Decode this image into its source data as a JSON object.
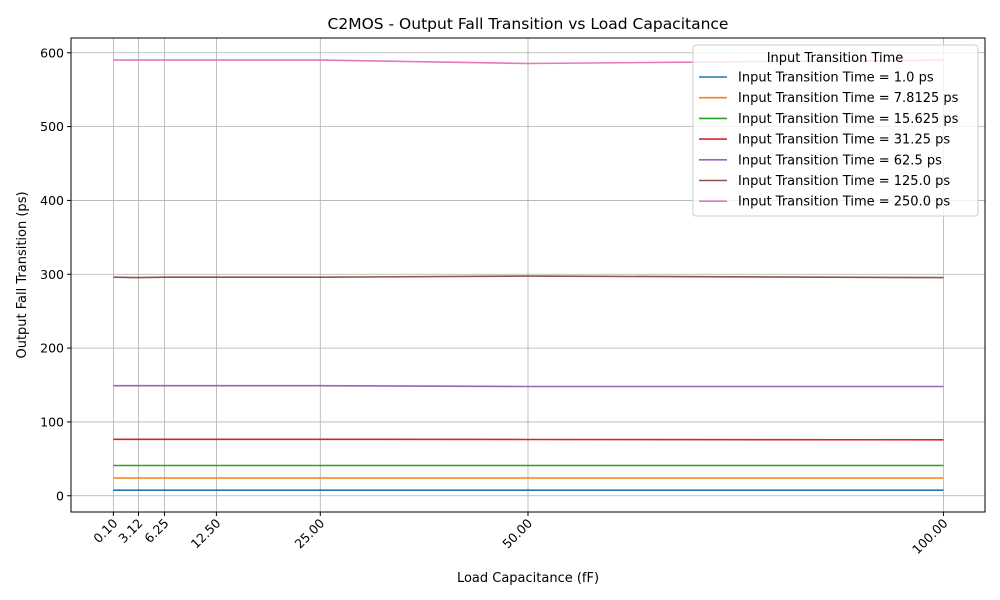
{
  "chart_data": {
    "type": "line",
    "title": "C2MOS - Output Fall Transition vs Load Capacitance",
    "xlabel": "Load Capacitance (fF)",
    "ylabel": "Output Fall Transition (ps)",
    "x": [
      0.1,
      3.12,
      6.25,
      12.5,
      25.0,
      50.0,
      100.0
    ],
    "x_tick_labels": [
      "0.10",
      "3.12",
      "6.25",
      "12.50",
      "25.00",
      "50.00",
      "100.00"
    ],
    "y_ticks": [
      0,
      100,
      200,
      300,
      400,
      500,
      600
    ],
    "xlim": [
      -5.0,
      105.0
    ],
    "ylim": [
      -22,
      620
    ],
    "grid": true,
    "legend_title": "Input Transition Time",
    "legend_position": "upper-right",
    "series": [
      {
        "name": "Input Transition Time = 1.0 ps",
        "color": "#1f77b4",
        "values": [
          7.5,
          7.5,
          7.5,
          7.5,
          7.5,
          7.5,
          7.5
        ]
      },
      {
        "name": "Input Transition Time = 7.8125 ps",
        "color": "#ff7f0e",
        "values": [
          24,
          24,
          24,
          24,
          24,
          24,
          24
        ]
      },
      {
        "name": "Input Transition Time = 15.625 ps",
        "color": "#2ca02c",
        "values": [
          41,
          41,
          41,
          41,
          41,
          41,
          41
        ]
      },
      {
        "name": "Input Transition Time = 31.25 ps",
        "color": "#d62728",
        "values": [
          76.5,
          76.5,
          76.5,
          76.5,
          76.5,
          76.2,
          75.8
        ]
      },
      {
        "name": "Input Transition Time = 62.5 ps",
        "color": "#9467bd",
        "values": [
          149,
          149,
          149,
          149,
          149,
          148,
          148
        ]
      },
      {
        "name": "Input Transition Time = 125.0 ps",
        "color": "#8c564b",
        "values": [
          296,
          295.5,
          296,
          296,
          296,
          297.5,
          295.5
        ]
      },
      {
        "name": "Input Transition Time = 250.0 ps",
        "color": "#e377c2",
        "values": [
          590,
          590,
          590,
          590,
          590,
          585.5,
          590
        ]
      }
    ]
  }
}
